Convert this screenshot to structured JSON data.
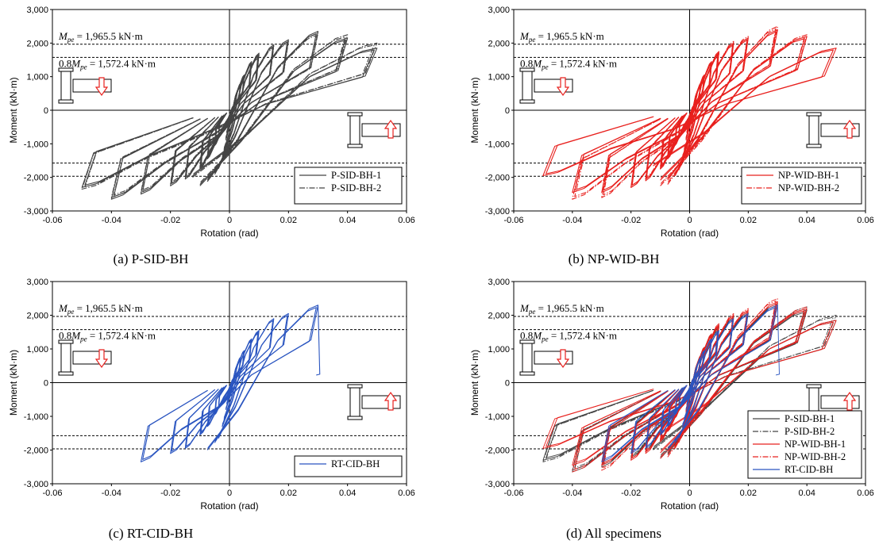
{
  "figure": {
    "ticks": {
      "x": [
        "-0.06",
        "-0.04",
        "-0.02",
        "0",
        "0.02",
        "0.04",
        "0.06"
      ],
      "y": [
        "3,000",
        "2,000",
        "1,000",
        "0",
        "-1,000",
        "-2,000",
        "-3,000"
      ]
    },
    "reference_lines": {
      "mpe_symbol": "M",
      "mpe_subscript": "pe",
      "mpe_text": " = 1,965.5 kN·m",
      "mpe_value": 1965.5,
      "mpe08_prefix": "0.8",
      "mpe08_text": " = 1,572.4 kN·m",
      "mpe08_value": 1572.4
    },
    "colors": {
      "P-SID": "#444444",
      "NP-WID": "#e8211e",
      "RT-CID": "#2a55c0",
      "refline": "#000000",
      "arrow": "#e8211e"
    },
    "panels": [
      {
        "caption": "(a) P-SID-BH",
        "legend": [
          "P-SID-BH-1",
          "P-SID-BH-2"
        ]
      },
      {
        "caption": "(b) NP-WID-BH",
        "legend": [
          "NP-WID-BH-1",
          "NP-WID-BH-2"
        ]
      },
      {
        "caption": "(c) RT-CID-BH",
        "legend": [
          "RT-CID-BH"
        ]
      },
      {
        "caption": "(d) All specimens",
        "legend": [
          "P-SID-BH-1",
          "P-SID-BH-2",
          "NP-WID-BH-1",
          "NP-WID-BH-2",
          "RT-CID-BH"
        ]
      }
    ]
  },
  "chart_data": [
    {
      "type": "line",
      "title": "(a) P-SID-BH",
      "xlabel": "Rotation (rad)",
      "ylabel": "Moment (kN·m)",
      "xlim": [
        -0.06,
        0.06
      ],
      "ylim": [
        -3000,
        3000
      ],
      "hlines": [
        1965.5,
        1572.4,
        -1572.4,
        -1965.5
      ],
      "series": [
        {
          "name": "P-SID-BH-1",
          "style": "solid",
          "color": "#444444",
          "amplitudes": [
            0.00375,
            0.005,
            0.0075,
            0.01,
            0.015,
            0.02,
            0.03,
            0.04,
            0.05
          ],
          "peak_moment_pos": [
            800,
            1050,
            1450,
            1700,
            1950,
            2100,
            2350,
            2150,
            1850
          ],
          "peak_moment_neg": [
            -800,
            -1050,
            -1450,
            -1750,
            -2050,
            -2250,
            -2500,
            -2650,
            -2300
          ]
        },
        {
          "name": "P-SID-BH-2",
          "style": "dashdot",
          "color": "#444444",
          "amplitudes": [
            0.00375,
            0.005,
            0.0075,
            0.01,
            0.015,
            0.02,
            0.03,
            0.04,
            0.05
          ],
          "peak_moment_pos": [
            780,
            1000,
            1400,
            1650,
            1900,
            2050,
            2300,
            2250,
            2000
          ],
          "peak_moment_neg": [
            -780,
            -1000,
            -1400,
            -1700,
            -2000,
            -2200,
            -2450,
            -2600,
            -2350
          ]
        }
      ]
    },
    {
      "type": "line",
      "title": "(b) NP-WID-BH",
      "xlabel": "Rotation (rad)",
      "ylabel": "Moment (kN·m)",
      "xlim": [
        -0.06,
        0.06
      ],
      "ylim": [
        -3000,
        3000
      ],
      "hlines": [
        1965.5,
        1572.4,
        -1572.4,
        -1965.5
      ],
      "series": [
        {
          "name": "NP-WID-BH-1",
          "style": "solid",
          "color": "#e8211e",
          "amplitudes": [
            0.00375,
            0.005,
            0.0075,
            0.01,
            0.015,
            0.02,
            0.03,
            0.04,
            0.05
          ],
          "peak_moment_pos": [
            800,
            1050,
            1450,
            1750,
            2000,
            2150,
            2400,
            2200,
            1850
          ],
          "peak_moment_neg": [
            -800,
            -1050,
            -1450,
            -1750,
            -2100,
            -2300,
            -2450,
            -2450,
            -1950
          ]
        },
        {
          "name": "NP-WID-BH-2",
          "style": "dashdot",
          "color": "#e8211e",
          "amplitudes": [
            0.00375,
            0.005,
            0.0075,
            0.01,
            0.015,
            0.02,
            0.03,
            0.04
          ],
          "peak_moment_pos": [
            780,
            1000,
            1400,
            1700,
            2050,
            2200,
            2500,
            2250
          ],
          "peak_moment_neg": [
            -780,
            -1000,
            -1400,
            -1700,
            -2050,
            -2300,
            -2600,
            -2650
          ]
        }
      ]
    },
    {
      "type": "line",
      "title": "(c) RT-CID-BH",
      "xlabel": "Rotation (rad)",
      "ylabel": "Moment (kN·m)",
      "xlim": [
        -0.06,
        0.06
      ],
      "ylim": [
        -3000,
        3000
      ],
      "hlines": [
        1965.5,
        1572.4,
        -1572.4,
        -1965.5
      ],
      "series": [
        {
          "name": "RT-CID-BH",
          "style": "solid",
          "color": "#2a55c0",
          "amplitudes": [
            0.00375,
            0.005,
            0.0075,
            0.01,
            0.015,
            0.02,
            0.03
          ],
          "peak_moment_pos": [
            750,
            950,
            1300,
            1550,
            1900,
            2050,
            2300
          ],
          "peak_moment_neg": [
            -750,
            -950,
            -1300,
            -1550,
            -1950,
            -2100,
            -2350
          ],
          "fracture": {
            "rotation": 0.03,
            "moment_drop_to": 250
          }
        }
      ]
    },
    {
      "type": "line",
      "title": "(d) All specimens",
      "xlabel": "Rotation (rad)",
      "ylabel": "Moment (kN·m)",
      "xlim": [
        -0.06,
        0.06
      ],
      "ylim": [
        -3000,
        3000
      ],
      "hlines": [
        1965.5,
        1572.4,
        -1572.4,
        -1965.5
      ],
      "series_names": [
        "P-SID-BH-1",
        "P-SID-BH-2",
        "NP-WID-BH-1",
        "NP-WID-BH-2",
        "RT-CID-BH"
      ]
    }
  ]
}
